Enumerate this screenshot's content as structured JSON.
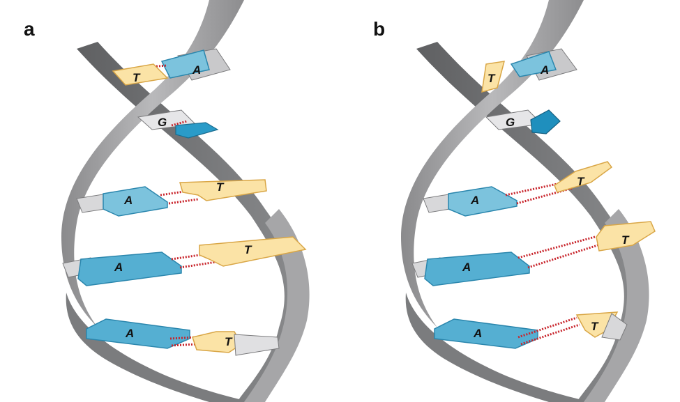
{
  "panels": [
    {
      "label": "a",
      "pairs": [
        {
          "left": "T",
          "right": "A"
        },
        {
          "left": "G"
        },
        {
          "left": "A",
          "right": "T"
        },
        {
          "left": "A",
          "right": "T"
        },
        {
          "left": "A",
          "right": "T"
        }
      ]
    },
    {
      "label": "b",
      "pairs": [
        {
          "left": "T",
          "right": "A"
        },
        {
          "left": "G"
        },
        {
          "left": "A",
          "right": "T"
        },
        {
          "left": "A",
          "right": "T"
        },
        {
          "left": "A",
          "right": "T"
        }
      ]
    }
  ],
  "colors": {
    "strand_front": "#9d9d9f",
    "strand_back": "#6f7072",
    "base_blue": "#7cc3dd",
    "base_blue_edge": "#2a86ad",
    "base_yellow": "#fbe3a6",
    "base_yellow_edge": "#d9a646",
    "hbond": "#c8252c"
  }
}
